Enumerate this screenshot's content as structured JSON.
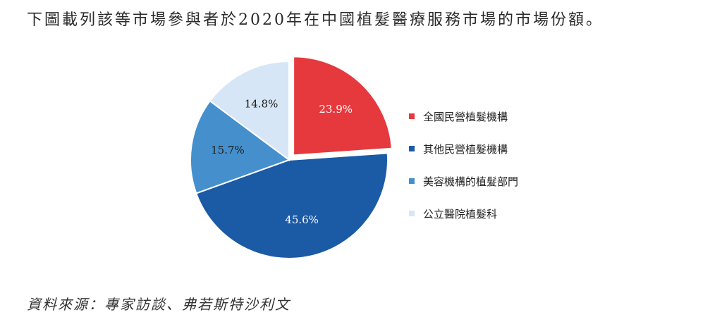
{
  "heading": "下圖載列該等市場參與者於2020年在中國植髮醫療服務市場的市場份額。",
  "source": "資料來源：專家訪談、弗若斯特沙利文",
  "chart_data": {
    "type": "pie",
    "title": "",
    "unit": "%",
    "legend_position": "right",
    "slices": [
      {
        "label": "全國民營植髮機構",
        "value": 23.9,
        "display": "23.9%",
        "color": "#e5393e",
        "text_color": "#ffffff",
        "exploded": true
      },
      {
        "label": "其他民營植髮機構",
        "value": 45.6,
        "display": "45.6%",
        "color": "#1b5aa5",
        "text_color": "#ffffff",
        "exploded": false
      },
      {
        "label": "美容機構的植髮部門",
        "value": 15.7,
        "display": "15.7%",
        "color": "#4590cc",
        "text_color": "#1a1a1a",
        "exploded": false
      },
      {
        "label": "公立醫院植髮科",
        "value": 14.8,
        "display": "14.8%",
        "color": "#d7e6f6",
        "text_color": "#1a1a1a",
        "exploded": false
      }
    ]
  }
}
